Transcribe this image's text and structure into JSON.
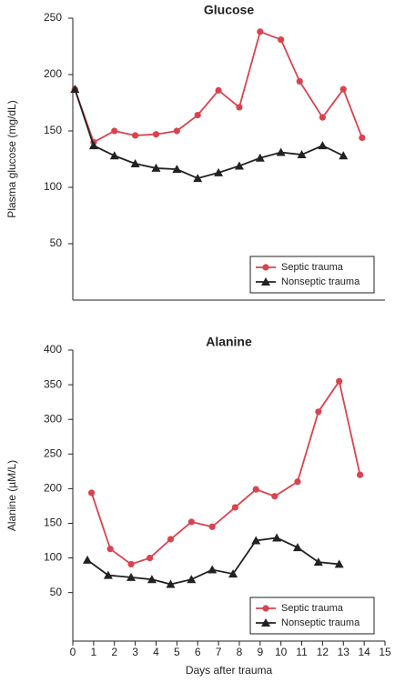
{
  "chart_data": [
    {
      "type": "line",
      "title": "Glucose",
      "ylabel": "Plasma glucose (mg/dL)",
      "xlim": [
        0,
        15
      ],
      "ylim": [
        0,
        250
      ],
      "yticks": [
        50,
        100,
        150,
        200,
        250
      ],
      "legend": "lower right",
      "series": [
        {
          "name": "Septic trauma",
          "color": "#d9434e",
          "marker": "circle",
          "x": [
            0.1,
            1,
            2,
            3,
            4,
            5,
            6,
            7,
            8,
            9,
            10,
            10.9,
            12,
            13,
            13.9
          ],
          "values": [
            187,
            140,
            150,
            146,
            147,
            150,
            164,
            186,
            171,
            238,
            231,
            194,
            162,
            187,
            144
          ]
        },
        {
          "name": "Nonseptic trauma",
          "color": "#222222",
          "marker": "triangle",
          "x": [
            0.1,
            1,
            2,
            3,
            4,
            5,
            6,
            7,
            8,
            9,
            10,
            11,
            12,
            13
          ],
          "values": [
            187,
            137,
            128,
            121,
            117,
            116,
            108,
            113,
            119,
            126,
            131,
            129,
            137,
            128
          ]
        }
      ]
    },
    {
      "type": "line",
      "title": "Alanine",
      "ylabel": "Alanine (µM/L)",
      "xlabel": "Days after trauma",
      "xlim": [
        0,
        15
      ],
      "xticks": [
        0,
        1,
        2,
        3,
        4,
        5,
        6,
        7,
        8,
        9,
        10,
        11,
        12,
        13,
        14,
        15
      ],
      "ylim": [
        -20,
        400
      ],
      "yticks": [
        50,
        100,
        150,
        200,
        250,
        300,
        350,
        400
      ],
      "legend": "lower right",
      "series": [
        {
          "name": "Septic trauma",
          "color": "#d9434e",
          "marker": "circle",
          "x": [
            0.9,
            1.8,
            2.8,
            3.7,
            4.7,
            5.7,
            6.7,
            7.8,
            8.8,
            9.7,
            10.8,
            11.8,
            12.8,
            13.8
          ],
          "values": [
            194,
            113,
            91,
            100,
            127,
            152,
            145,
            173,
            199,
            189,
            210,
            311,
            355,
            220
          ]
        },
        {
          "name": "Nonseptic trauma",
          "color": "#222222",
          "marker": "triangle",
          "x": [
            0.7,
            1.7,
            2.8,
            3.8,
            4.7,
            5.7,
            6.7,
            7.7,
            8.8,
            9.8,
            10.8,
            11.8,
            12.8
          ],
          "values": [
            97,
            75,
            72,
            69,
            62,
            69,
            83,
            77,
            125,
            129,
            115,
            94,
            91
          ]
        }
      ]
    }
  ]
}
